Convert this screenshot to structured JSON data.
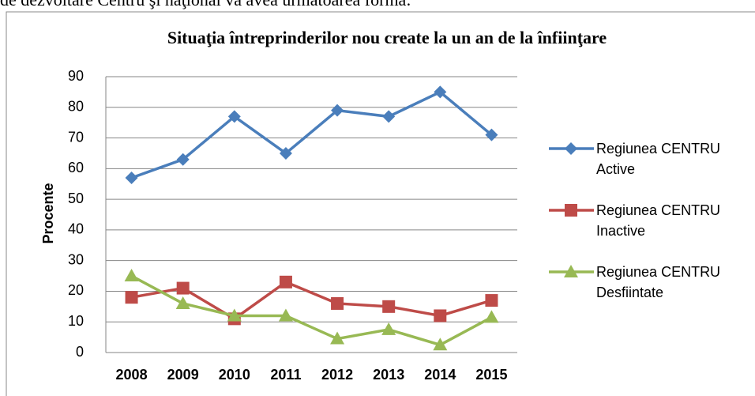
{
  "intro_text": "de dezvoltare Centru şi naţional va avea următoarea formă:",
  "chart_data": {
    "type": "line",
    "title": "Situaţia întreprinderilor nou create la un an de la înfiinţare",
    "y_label": "Procente",
    "categories": [
      "2008",
      "2009",
      "2010",
      "2011",
      "2012",
      "2013",
      "2014",
      "2015"
    ],
    "series": [
      {
        "name": "Regiunea CENTRU Active",
        "color": "#4a7ebb",
        "marker": "diamond",
        "values": [
          57,
          63,
          77,
          65,
          79,
          77,
          85,
          71
        ]
      },
      {
        "name": "Regiunea CENTRU Inactive",
        "color": "#be4b48",
        "marker": "square",
        "values": [
          18,
          21,
          11,
          23,
          16,
          15,
          12,
          17
        ]
      },
      {
        "name": "Regiunea CENTRU Desfiintate",
        "color": "#98b954",
        "marker": "triangle",
        "values": [
          25,
          16,
          12,
          12,
          4.5,
          7.5,
          2.5,
          11.5
        ]
      }
    ],
    "ylim": [
      0,
      90
    ],
    "yticks": [
      0,
      10,
      20,
      30,
      40,
      50,
      60,
      70,
      80,
      90
    ],
    "grid": true,
    "legend": "right"
  }
}
